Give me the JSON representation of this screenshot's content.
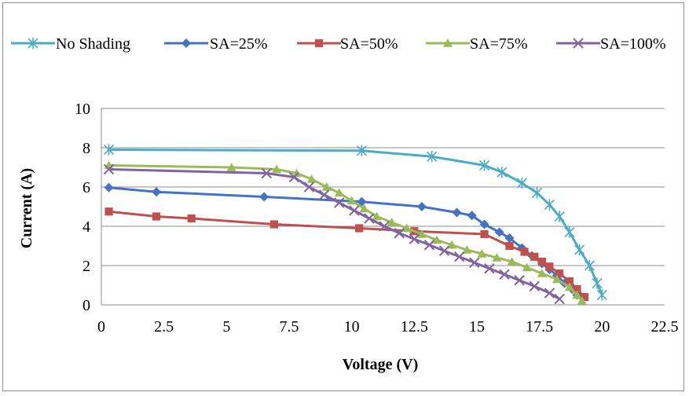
{
  "chart_data": {
    "type": "line",
    "xlabel": "Voltage (V)",
    "ylabel": "Current (A)",
    "xlim": [
      0,
      22.5
    ],
    "ylim": [
      0,
      10
    ],
    "xticks": [
      "0",
      "2.5",
      "5",
      "7.5",
      "10",
      "12.5",
      "15",
      "17.5",
      "20",
      "22.5"
    ],
    "yticks": [
      "0",
      "2",
      "4",
      "6",
      "8",
      "10"
    ],
    "grid": "horizontal",
    "legend_position": "top",
    "series": [
      {
        "name": "No Shading",
        "color": "#4BACC6",
        "marker": "asterisk",
        "points": [
          [
            0.3,
            7.9
          ],
          [
            10.4,
            7.85
          ],
          [
            13.2,
            7.55
          ],
          [
            15.3,
            7.1
          ],
          [
            16.0,
            6.75
          ],
          [
            16.8,
            6.2
          ],
          [
            17.4,
            5.7
          ],
          [
            17.9,
            5.1
          ],
          [
            18.3,
            4.5
          ],
          [
            18.7,
            3.7
          ],
          [
            19.1,
            2.8
          ],
          [
            19.5,
            2.0
          ],
          [
            19.8,
            1.1
          ],
          [
            20.0,
            0.5
          ]
        ]
      },
      {
        "name": "SA=25%",
        "color": "#4472C4",
        "marker": "diamond",
        "points": [
          [
            0.3,
            5.97
          ],
          [
            2.2,
            5.75
          ],
          [
            6.5,
            5.5
          ],
          [
            10.4,
            5.25
          ],
          [
            12.8,
            5.0
          ],
          [
            14.2,
            4.7
          ],
          [
            14.8,
            4.55
          ],
          [
            15.3,
            4.1
          ],
          [
            15.9,
            3.7
          ],
          [
            16.3,
            3.4
          ],
          [
            16.8,
            2.9
          ],
          [
            17.2,
            2.5
          ],
          [
            17.6,
            2.1
          ],
          [
            17.9,
            1.8
          ],
          [
            18.2,
            1.5
          ],
          [
            18.5,
            1.1
          ],
          [
            18.8,
            0.8
          ],
          [
            19.0,
            0.5
          ]
        ]
      },
      {
        "name": "SA=50%",
        "color": "#C0504D",
        "marker": "square",
        "points": [
          [
            0.3,
            4.75
          ],
          [
            2.2,
            4.5
          ],
          [
            3.6,
            4.4
          ],
          [
            6.9,
            4.1
          ],
          [
            10.3,
            3.9
          ],
          [
            12.5,
            3.75
          ],
          [
            15.3,
            3.6
          ],
          [
            16.3,
            3.0
          ],
          [
            16.9,
            2.7
          ],
          [
            17.3,
            2.45
          ],
          [
            17.6,
            2.2
          ],
          [
            17.9,
            1.95
          ],
          [
            18.3,
            1.6
          ],
          [
            18.7,
            1.2
          ],
          [
            19.0,
            0.8
          ],
          [
            19.3,
            0.4
          ]
        ]
      },
      {
        "name": "SA=75%",
        "color": "#9BBB59",
        "marker": "triangle",
        "points": [
          [
            0.3,
            7.1
          ],
          [
            5.2,
            7.0
          ],
          [
            7.0,
            6.9
          ],
          [
            7.8,
            6.7
          ],
          [
            8.4,
            6.4
          ],
          [
            9.0,
            6.0
          ],
          [
            9.5,
            5.7
          ],
          [
            10.0,
            5.3
          ],
          [
            10.5,
            4.9
          ],
          [
            11.0,
            4.5
          ],
          [
            11.6,
            4.2
          ],
          [
            12.2,
            3.9
          ],
          [
            12.8,
            3.6
          ],
          [
            13.4,
            3.3
          ],
          [
            14.0,
            3.05
          ],
          [
            14.6,
            2.8
          ],
          [
            15.2,
            2.6
          ],
          [
            15.8,
            2.4
          ],
          [
            16.4,
            2.2
          ],
          [
            17.0,
            1.9
          ],
          [
            17.6,
            1.6
          ],
          [
            18.2,
            1.3
          ],
          [
            18.7,
            0.9
          ],
          [
            19.0,
            0.5
          ],
          [
            19.2,
            0.2
          ]
        ]
      },
      {
        "name": "SA=100%",
        "color": "#8064A2",
        "marker": "x",
        "points": [
          [
            0.3,
            6.9
          ],
          [
            6.6,
            6.7
          ],
          [
            7.7,
            6.5
          ],
          [
            8.3,
            6.0
          ],
          [
            8.9,
            5.6
          ],
          [
            9.5,
            5.2
          ],
          [
            10.1,
            4.8
          ],
          [
            10.7,
            4.4
          ],
          [
            11.3,
            4.0
          ],
          [
            11.9,
            3.65
          ],
          [
            12.5,
            3.35
          ],
          [
            13.1,
            3.05
          ],
          [
            13.7,
            2.75
          ],
          [
            14.3,
            2.45
          ],
          [
            14.9,
            2.15
          ],
          [
            15.5,
            1.85
          ],
          [
            16.1,
            1.55
          ],
          [
            16.7,
            1.25
          ],
          [
            17.3,
            0.95
          ],
          [
            17.9,
            0.6
          ],
          [
            18.3,
            0.3
          ]
        ]
      }
    ]
  }
}
